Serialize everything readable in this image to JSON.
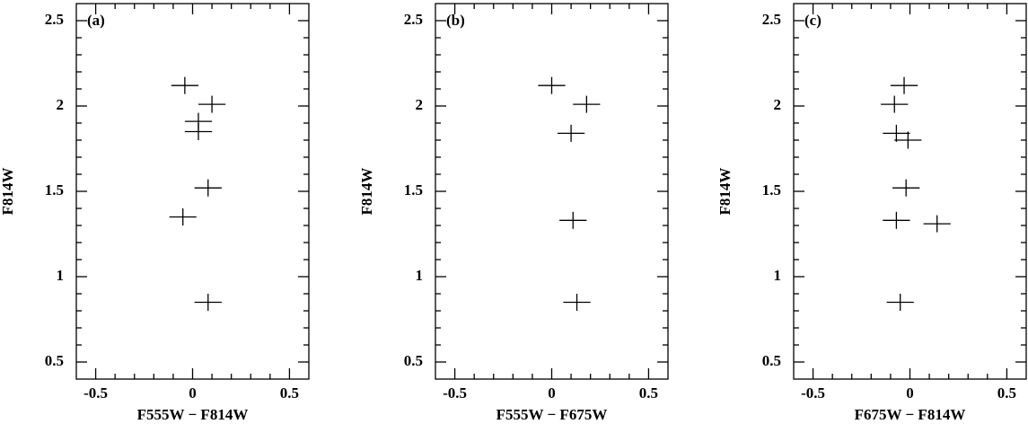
{
  "chart_data": [
    {
      "type": "scatter",
      "panel_label": "(a)",
      "x_label": "F555W − F814W",
      "y_label": "F814W",
      "x": [
        -0.04,
        0.1,
        0.03,
        0.03,
        0.08,
        -0.05,
        0.08
      ],
      "values": [
        2.12,
        2.01,
        1.91,
        1.85,
        1.52,
        1.35,
        0.85
      ],
      "xerr": [
        0.07,
        0.07,
        0.07,
        0.07,
        0.07,
        0.07,
        0.07
      ],
      "yerr": [
        0.05,
        0.05,
        0.05,
        0.05,
        0.05,
        0.05,
        0.05
      ],
      "color": "#000000",
      "xlim": [
        -0.6,
        0.6
      ],
      "ylim": [
        0.4,
        2.6
      ],
      "xticks": [
        -0.5,
        0,
        0.5
      ],
      "yticks": [
        0.5,
        1,
        1.5,
        2,
        2.5
      ],
      "xminorticks": [
        -0.4,
        -0.3,
        -0.2,
        -0.1,
        0.1,
        0.2,
        0.3,
        0.4
      ],
      "yminorticks": [
        0.6,
        0.7,
        0.8,
        0.9,
        1.1,
        1.2,
        1.3,
        1.4,
        1.6,
        1.7,
        1.8,
        1.9,
        2.1,
        2.2,
        2.3,
        2.4
      ]
    },
    {
      "type": "scatter",
      "panel_label": "(b)",
      "x_label": "F555W − F675W",
      "y_label": "F814W",
      "x": [
        0.0,
        0.18,
        0.1,
        0.11,
        0.13
      ],
      "values": [
        2.12,
        2.01,
        1.84,
        1.33,
        0.85
      ],
      "xerr": [
        0.07,
        0.07,
        0.07,
        0.07,
        0.07
      ],
      "yerr": [
        0.05,
        0.05,
        0.05,
        0.05,
        0.05
      ],
      "color": "#000000",
      "xlim": [
        -0.6,
        0.6
      ],
      "ylim": [
        0.4,
        2.6
      ],
      "xticks": [
        -0.5,
        0,
        0.5
      ],
      "yticks": [
        0.5,
        1,
        1.5,
        2,
        2.5
      ],
      "xminorticks": [
        -0.4,
        -0.3,
        -0.2,
        -0.1,
        0.1,
        0.2,
        0.3,
        0.4
      ],
      "yminorticks": [
        0.6,
        0.7,
        0.8,
        0.9,
        1.1,
        1.2,
        1.3,
        1.4,
        1.6,
        1.7,
        1.8,
        1.9,
        2.1,
        2.2,
        2.3,
        2.4
      ]
    },
    {
      "type": "scatter",
      "panel_label": "(c)",
      "x_label": "F675W − F814W",
      "y_label": "F814W",
      "x": [
        -0.03,
        -0.08,
        -0.07,
        -0.01,
        -0.02,
        -0.07,
        0.14,
        -0.05
      ],
      "values": [
        2.12,
        2.01,
        1.84,
        1.8,
        1.52,
        1.33,
        1.31,
        0.85
      ],
      "xerr": [
        0.07,
        0.07,
        0.07,
        0.07,
        0.07,
        0.07,
        0.07,
        0.07
      ],
      "yerr": [
        0.05,
        0.05,
        0.05,
        0.05,
        0.05,
        0.05,
        0.05,
        0.05
      ],
      "color": "#000000",
      "xlim": [
        -0.6,
        0.6
      ],
      "ylim": [
        0.4,
        2.6
      ],
      "xticks": [
        -0.5,
        0,
        0.5
      ],
      "yticks": [
        0.5,
        1,
        1.5,
        2,
        2.5
      ],
      "xminorticks": [
        -0.4,
        -0.3,
        -0.2,
        -0.1,
        0.1,
        0.2,
        0.3,
        0.4
      ],
      "yminorticks": [
        0.6,
        0.7,
        0.8,
        0.9,
        1.1,
        1.2,
        1.3,
        1.4,
        1.6,
        1.7,
        1.8,
        1.9,
        2.1,
        2.2,
        2.3,
        2.4
      ]
    }
  ]
}
